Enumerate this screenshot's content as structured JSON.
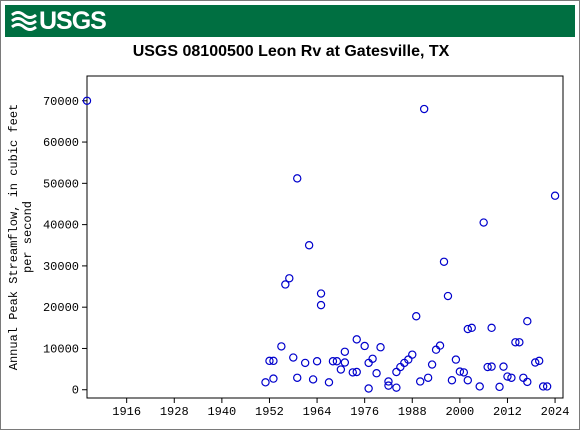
{
  "header": {
    "logo_text": "USGS",
    "color": "#006f41"
  },
  "chart_data": {
    "type": "scatter",
    "title": "USGS 08100500 Leon Rv at Gatesville, TX",
    "xlabel": "",
    "ylabel_line1": "Annual Peak Streamflow, in cubic feet",
    "ylabel_line2": "per second",
    "xlim": [
      1906,
      2026
    ],
    "ylim": [
      -2000,
      76000
    ],
    "x_ticks": [
      1916,
      1928,
      1940,
      1952,
      1964,
      1976,
      1988,
      2000,
      2012,
      2024
    ],
    "y_ticks": [
      0,
      10000,
      20000,
      30000,
      40000,
      50000,
      60000,
      70000
    ],
    "marker_color": "#0000cc",
    "grid": false,
    "points": [
      [
        1906,
        70000
      ],
      [
        1951,
        1800
      ],
      [
        1952,
        7000
      ],
      [
        1953,
        7000
      ],
      [
        1953,
        2700
      ],
      [
        1955,
        10500
      ],
      [
        1956,
        25500
      ],
      [
        1957,
        27000
      ],
      [
        1958,
        7800
      ],
      [
        1959,
        51200
      ],
      [
        1959,
        2900
      ],
      [
        1961,
        6500
      ],
      [
        1962,
        35000
      ],
      [
        1963,
        2500
      ],
      [
        1964,
        6900
      ],
      [
        1965,
        23300
      ],
      [
        1965,
        20500
      ],
      [
        1967,
        1800
      ],
      [
        1968,
        6900
      ],
      [
        1969,
        6900
      ],
      [
        1970,
        4900
      ],
      [
        1971,
        9200
      ],
      [
        1971,
        6600
      ],
      [
        1973,
        4200
      ],
      [
        1974,
        12200
      ],
      [
        1974,
        4300
      ],
      [
        1976,
        10600
      ],
      [
        1977,
        6500
      ],
      [
        1977,
        300
      ],
      [
        1978,
        7500
      ],
      [
        1979,
        4000
      ],
      [
        1980,
        10300
      ],
      [
        1982,
        2000
      ],
      [
        1982,
        1000
      ],
      [
        1984,
        500
      ],
      [
        1984,
        4300
      ],
      [
        1985,
        5500
      ],
      [
        1986,
        6500
      ],
      [
        1987,
        7300
      ],
      [
        1988,
        8500
      ],
      [
        1989,
        17800
      ],
      [
        1990,
        2000
      ],
      [
        1991,
        68000
      ],
      [
        1992,
        2900
      ],
      [
        1993,
        6100
      ],
      [
        1994,
        9700
      ],
      [
        1995,
        10700
      ],
      [
        1996,
        31000
      ],
      [
        1997,
        22700
      ],
      [
        1998,
        2300
      ],
      [
        1999,
        7300
      ],
      [
        2000,
        4400
      ],
      [
        2001,
        4200
      ],
      [
        2002,
        2300
      ],
      [
        2002,
        14700
      ],
      [
        2003,
        15000
      ],
      [
        2005,
        800
      ],
      [
        2006,
        40500
      ],
      [
        2007,
        5500
      ],
      [
        2008,
        5600
      ],
      [
        2008,
        15000
      ],
      [
        2010,
        700
      ],
      [
        2011,
        5600
      ],
      [
        2012,
        3200
      ],
      [
        2013,
        2900
      ],
      [
        2014,
        11500
      ],
      [
        2015,
        11500
      ],
      [
        2016,
        2900
      ],
      [
        2017,
        1900
      ],
      [
        2017,
        16600
      ],
      [
        2019,
        6600
      ],
      [
        2020,
        7000
      ],
      [
        2021,
        800
      ],
      [
        2022,
        800
      ],
      [
        2024,
        47000
      ]
    ]
  }
}
